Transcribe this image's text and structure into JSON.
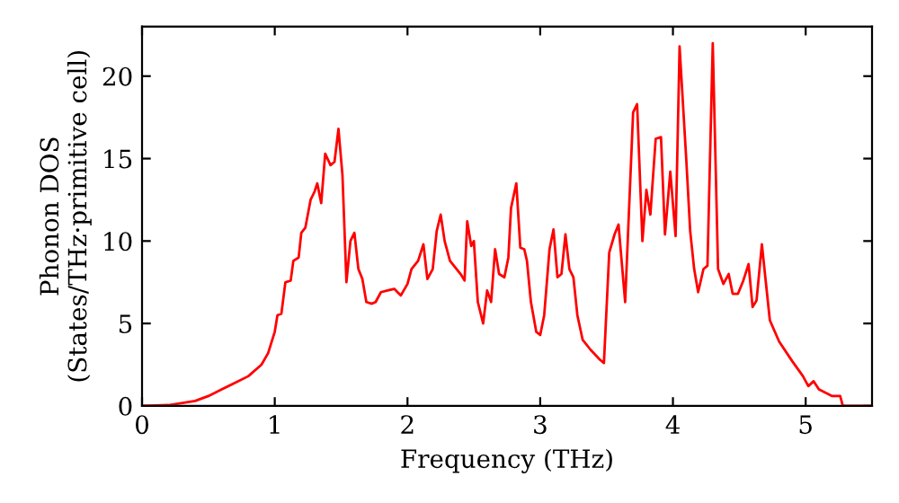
{
  "chart_data": {
    "type": "line",
    "xlabel": "Frequency (THz)",
    "ylabel": "Phonon DOS\n(States/THz·primitive cell)",
    "xlim": [
      0,
      5.5
    ],
    "ylim": [
      0,
      23
    ],
    "xticks": [
      0,
      1,
      2,
      3,
      4,
      5
    ],
    "yticks": [
      0,
      5,
      10,
      15,
      20
    ],
    "grid": false,
    "legend": false,
    "marker": "none",
    "line_style": "solid",
    "series": [
      {
        "color": "#ff0000",
        "x": [
          0,
          0.2,
          0.4,
          0.5,
          0.6,
          0.7,
          0.8,
          0.9,
          0.95,
          1.0,
          1.02,
          1.05,
          1.08,
          1.12,
          1.14,
          1.18,
          1.2,
          1.23,
          1.27,
          1.3,
          1.32,
          1.35,
          1.38,
          1.42,
          1.45,
          1.48,
          1.51,
          1.54,
          1.57,
          1.6,
          1.63,
          1.66,
          1.69,
          1.73,
          1.76,
          1.8,
          1.85,
          1.9,
          1.95,
          2.0,
          2.03,
          2.08,
          2.12,
          2.15,
          2.19,
          2.22,
          2.25,
          2.28,
          2.32,
          2.4,
          2.43,
          2.45,
          2.48,
          2.5,
          2.53,
          2.57,
          2.6,
          2.63,
          2.66,
          2.69,
          2.73,
          2.76,
          2.78,
          2.82,
          2.85,
          2.88,
          2.9,
          2.93,
          2.97,
          3.0,
          3.03,
          3.07,
          3.1,
          3.13,
          3.16,
          3.19,
          3.22,
          3.25,
          3.28,
          3.32,
          3.38,
          3.45,
          3.48,
          3.52,
          3.56,
          3.59,
          3.64,
          3.7,
          3.73,
          3.77,
          3.8,
          3.83,
          3.87,
          3.91,
          3.94,
          3.98,
          4.02,
          4.05,
          4.1,
          4.13,
          4.16,
          4.19,
          4.23,
          4.26,
          4.3,
          4.34,
          4.38,
          4.42,
          4.45,
          4.49,
          4.53,
          4.57,
          4.6,
          4.63,
          4.67,
          4.7,
          4.73,
          4.8,
          4.9,
          4.98,
          5.02,
          5.06,
          5.1,
          5.2,
          5.26,
          5.28,
          5.5
        ],
        "values": [
          0,
          0.05,
          0.3,
          0.6,
          1.0,
          1.4,
          1.8,
          2.5,
          3.2,
          4.5,
          5.5,
          5.6,
          7.5,
          7.6,
          8.8,
          9,
          10.5,
          10.8,
          12.5,
          13,
          13.5,
          12.3,
          15.3,
          14.6,
          14.8,
          16.8,
          14,
          7.5,
          10,
          10.5,
          8.3,
          7.7,
          6.3,
          6.2,
          6.3,
          6.9,
          7.0,
          7.1,
          6.7,
          7.4,
          8.3,
          8.8,
          9.8,
          7.7,
          8.3,
          10.6,
          11.6,
          10,
          8.8,
          8,
          7.6,
          11.2,
          9.7,
          10,
          6.3,
          5.0,
          7.0,
          6.3,
          9.5,
          8,
          7.8,
          9,
          12,
          13.5,
          9.6,
          9.5,
          8.8,
          6.3,
          4.5,
          4.3,
          5.5,
          9.5,
          10.7,
          7.8,
          8,
          10.4,
          8.3,
          7.8,
          5.5,
          4.0,
          3.4,
          2.8,
          2.6,
          9.3,
          10.4,
          11,
          6.3,
          17.8,
          18.3,
          10.0,
          13.1,
          11.6,
          16.2,
          16.3,
          10.4,
          14.2,
          10.3,
          21.8,
          15,
          10.6,
          8.3,
          6.9,
          8.3,
          8.5,
          22,
          8.3,
          7.4,
          8.0,
          6.8,
          6.8,
          7.6,
          8.6,
          6.0,
          6.4,
          9.8,
          7.5,
          5.2,
          3.9,
          2.7,
          1.8,
          1.2,
          1.5,
          1.0,
          0.6,
          0.6,
          0,
          0
        ]
      }
    ]
  }
}
